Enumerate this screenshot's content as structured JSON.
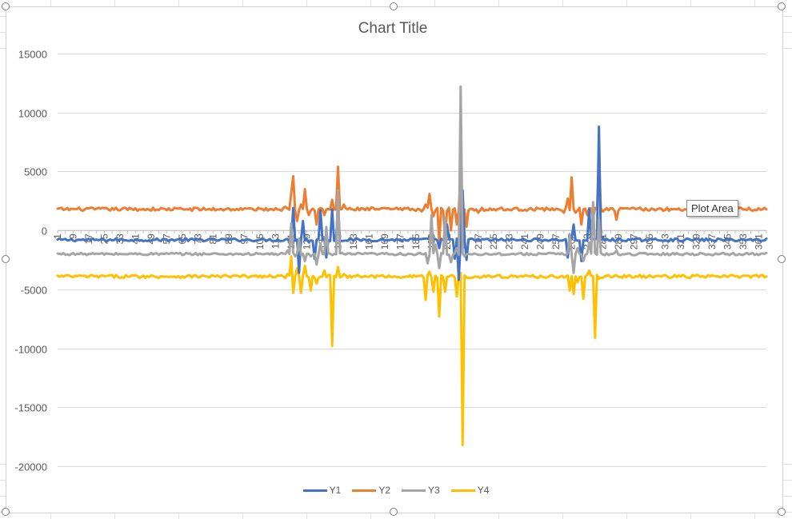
{
  "tooltip": {
    "text": "Plot Area"
  },
  "colors": {
    "Y1": "#4472C4",
    "Y2": "#ED7D31",
    "Y3": "#A5A5A5",
    "Y4": "#FFC000"
  },
  "chart_data": {
    "type": "line",
    "title": "Chart Title",
    "xlabel": "",
    "ylabel": "",
    "ylim": [
      -22000,
      17000
    ],
    "yticks": [
      15000,
      10000,
      5000,
      0,
      -5000,
      -10000,
      -15000,
      -20000
    ],
    "xticks": [
      1,
      9,
      17,
      25,
      33,
      41,
      49,
      57,
      65,
      73,
      81,
      89,
      97,
      105,
      113,
      121,
      129,
      137,
      145,
      153,
      161,
      169,
      177,
      185,
      193,
      201,
      209,
      217,
      225,
      233,
      241,
      249,
      257,
      265,
      273,
      281,
      289,
      297,
      305,
      313,
      321,
      329,
      337,
      345,
      353,
      361
    ],
    "x_count": 365,
    "grid": true,
    "legend": "bottom",
    "series": [
      {
        "name": "Y1",
        "baseline": -800,
        "noise": 120,
        "spikes": [
          [
            122,
            1900
          ],
          [
            125,
            -3600
          ],
          [
            127,
            800
          ],
          [
            130,
            -1000
          ],
          [
            133,
            -2400
          ],
          [
            136,
            1700
          ],
          [
            139,
            -2300
          ],
          [
            142,
            1800
          ],
          [
            145,
            2200
          ],
          [
            193,
            0
          ],
          [
            197,
            -1500
          ],
          [
            201,
            500
          ],
          [
            205,
            -2400
          ],
          [
            207,
            -4200
          ],
          [
            209,
            3400
          ],
          [
            211,
            -2500
          ],
          [
            263,
            -2300
          ],
          [
            266,
            500
          ],
          [
            270,
            -2600
          ],
          [
            274,
            1800
          ],
          [
            279,
            8800
          ],
          [
            281,
            -600
          ]
        ]
      },
      {
        "name": "Y2",
        "baseline": 1800,
        "noise": 140,
        "spikes": [
          [
            118,
            2000
          ],
          [
            121,
            3200
          ],
          [
            122,
            4600
          ],
          [
            124,
            800
          ],
          [
            126,
            2200
          ],
          [
            128,
            3500
          ],
          [
            130,
            1300
          ],
          [
            134,
            500
          ],
          [
            138,
            1300
          ],
          [
            142,
            2600
          ],
          [
            145,
            5400
          ],
          [
            148,
            2200
          ],
          [
            152,
            1800
          ],
          [
            188,
            1600
          ],
          [
            190,
            2200
          ],
          [
            192,
            3100
          ],
          [
            194,
            1200
          ],
          [
            197,
            -1000
          ],
          [
            200,
            -600
          ],
          [
            203,
            0
          ],
          [
            206,
            500
          ],
          [
            208,
            4900
          ],
          [
            209,
            -1500
          ],
          [
            211,
            300
          ],
          [
            217,
            1500
          ],
          [
            261,
            1500
          ],
          [
            263,
            2700
          ],
          [
            265,
            4500
          ],
          [
            267,
            1500
          ],
          [
            270,
            500
          ],
          [
            273,
            1300
          ],
          [
            276,
            1000
          ],
          [
            279,
            6000
          ],
          [
            281,
            1600
          ],
          [
            288,
            900
          ],
          [
            290,
            1900
          ]
        ]
      },
      {
        "name": "Y3",
        "baseline": -2000,
        "noise": 100,
        "spikes": [
          [
            119,
            -1700
          ],
          [
            121,
            600
          ],
          [
            123,
            -2200
          ],
          [
            125,
            -700
          ],
          [
            128,
            -2600
          ],
          [
            131,
            -2200
          ],
          [
            134,
            -2900
          ],
          [
            136,
            -1100
          ],
          [
            139,
            300
          ],
          [
            142,
            -2100
          ],
          [
            145,
            3400
          ],
          [
            148,
            -2000
          ],
          [
            188,
            -2000
          ],
          [
            191,
            -2800
          ],
          [
            193,
            1300
          ],
          [
            195,
            -1200
          ],
          [
            197,
            -3200
          ],
          [
            200,
            1100
          ],
          [
            203,
            -2700
          ],
          [
            206,
            -1500
          ],
          [
            208,
            12200
          ],
          [
            210,
            -2200
          ],
          [
            262,
            -2100
          ],
          [
            264,
            -300
          ],
          [
            266,
            -3600
          ],
          [
            268,
            -1500
          ],
          [
            271,
            -2600
          ],
          [
            274,
            -1000
          ],
          [
            276,
            2400
          ],
          [
            279,
            1000
          ],
          [
            282,
            -2100
          ],
          [
            288,
            -1700
          ],
          [
            290,
            -2100
          ]
        ]
      },
      {
        "name": "Y4",
        "baseline": -3900,
        "noise": 130,
        "spikes": [
          [
            119,
            -3700
          ],
          [
            121,
            -2200
          ],
          [
            122,
            -5300
          ],
          [
            124,
            -3200
          ],
          [
            126,
            -5300
          ],
          [
            128,
            -3000
          ],
          [
            131,
            -5100
          ],
          [
            134,
            -4500
          ],
          [
            138,
            -3400
          ],
          [
            142,
            -9800
          ],
          [
            145,
            -3100
          ],
          [
            148,
            -3700
          ],
          [
            188,
            -3800
          ],
          [
            190,
            -5900
          ],
          [
            192,
            -3500
          ],
          [
            194,
            -5200
          ],
          [
            197,
            -7300
          ],
          [
            200,
            -5200
          ],
          [
            203,
            -3800
          ],
          [
            206,
            -5600
          ],
          [
            208,
            -3600
          ],
          [
            209,
            -18200
          ],
          [
            211,
            -4000
          ],
          [
            262,
            -3900
          ],
          [
            264,
            -5100
          ],
          [
            266,
            -5400
          ],
          [
            268,
            -4400
          ],
          [
            271,
            -5800
          ],
          [
            274,
            -3400
          ],
          [
            277,
            -9100
          ],
          [
            279,
            -4100
          ],
          [
            282,
            -3900
          ],
          [
            288,
            -3800
          ]
        ]
      }
    ]
  }
}
